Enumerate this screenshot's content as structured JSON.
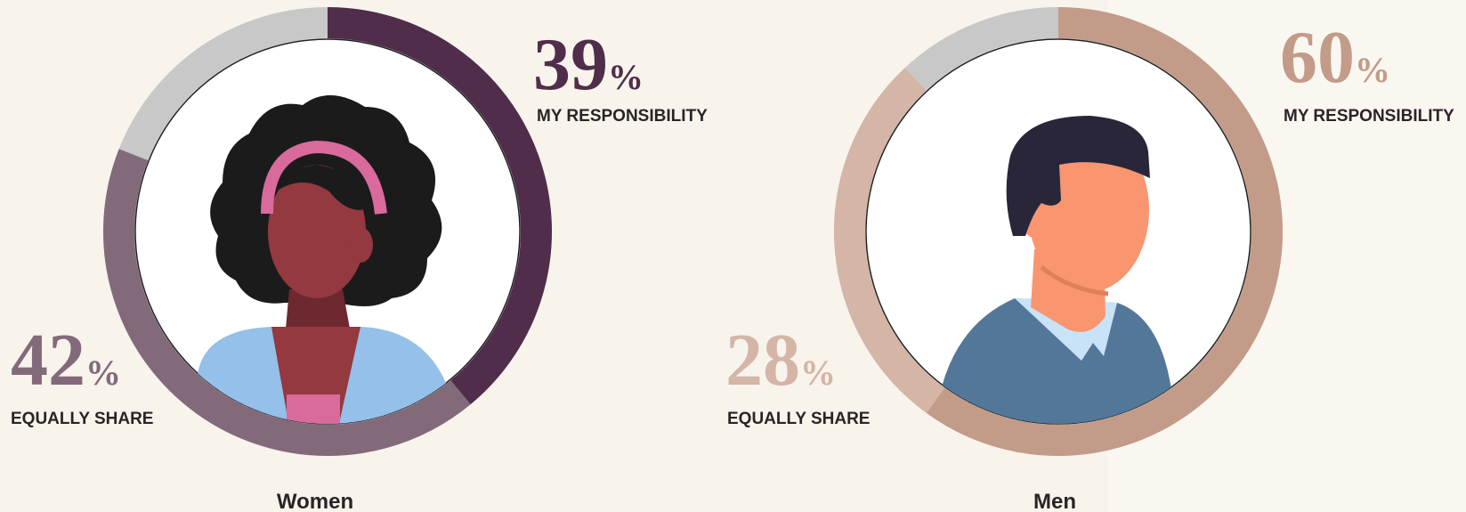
{
  "chart_data": [
    {
      "type": "donut",
      "title": "Women",
      "categories": [
        "MY RESPONSIBILITY",
        "EQUALLY SHARE"
      ],
      "values": [
        39,
        42
      ],
      "value_labels": [
        "39%",
        "42%"
      ],
      "colors": [
        "#502d4a",
        "#826a7b"
      ]
    },
    {
      "type": "donut",
      "title": "Men",
      "categories": [
        "MY RESPONSIBILITY",
        "EQUALLY SHARE"
      ],
      "values": [
        60,
        28
      ],
      "value_labels": [
        "60%",
        "28%"
      ],
      "colors": [
        "#c29c89",
        "#d4b5a6"
      ]
    }
  ]
}
